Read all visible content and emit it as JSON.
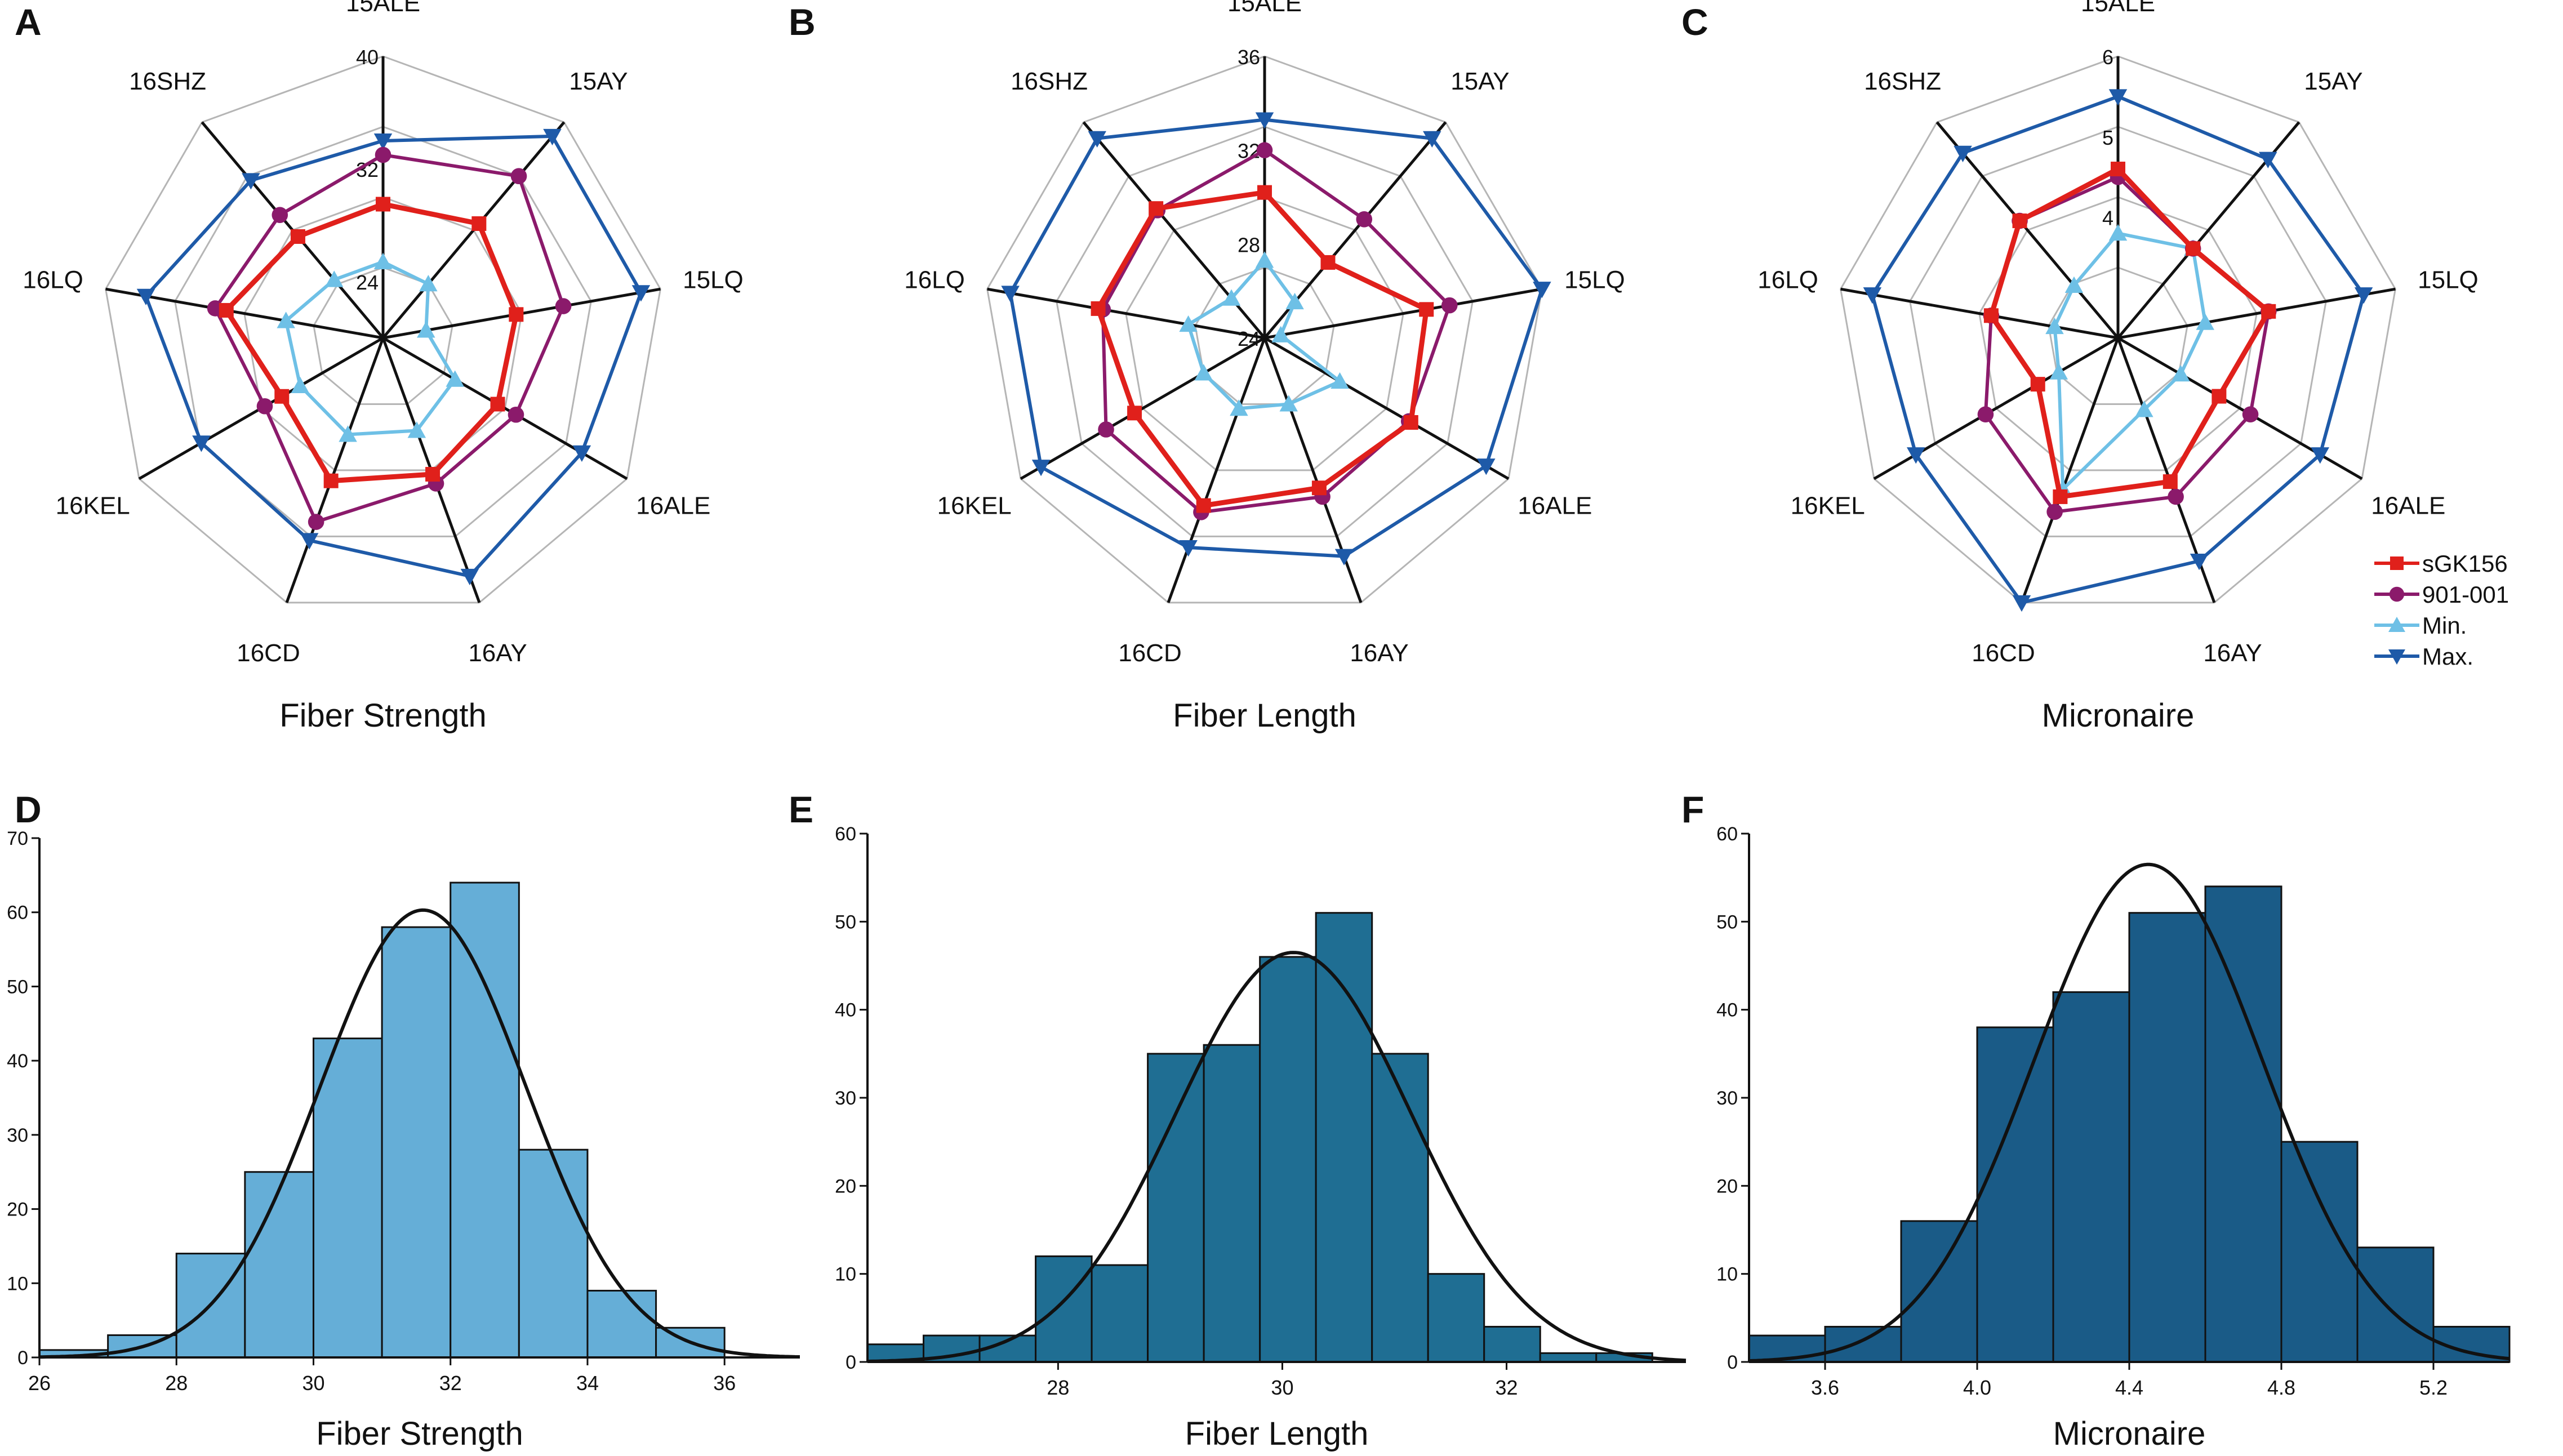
{
  "colors": {
    "sGK156": "#e0201b",
    "901-001": "#8b1a6b",
    "Min.": "#6ec0e6",
    "Max.": "#1e5aa8",
    "hist_D": "#65aed7",
    "hist_E": "#1f6e93",
    "hist_F": "#1a5b87",
    "curve": "#111111",
    "axis": "#111111",
    "grid": "#b5b5b5"
  },
  "legend": {
    "entries": [
      {
        "name": "sGK156",
        "marker": "square-icon"
      },
      {
        "name": "901-001",
        "marker": "circle-icon"
      },
      {
        "name": "Min.",
        "marker": "triangle-up-icon"
      },
      {
        "name": "Max.",
        "marker": "triangle-down-icon"
      }
    ]
  },
  "chart_data": [
    {
      "type": "radar",
      "panel": "A",
      "title": "Fiber Strength",
      "axes": [
        "15ALE",
        "15AY",
        "15LQ",
        "16ALE",
        "16AY",
        "16CD",
        "16KEL",
        "16LQ",
        "16SHZ"
      ],
      "rmin": 20,
      "rmax": 40,
      "tick_values": [
        24,
        32,
        40
      ],
      "tick_labels": [
        "24",
        "32",
        "40"
      ],
      "series": [
        {
          "name": "sGK156",
          "values": [
            29.5,
            30.6,
            29.6,
            29.4,
            30.3,
            30.8,
            28.3,
            31.3,
            29.4
          ]
        },
        {
          "name": "901-001",
          "values": [
            33.0,
            35.0,
            33.0,
            30.9,
            31.0,
            33.9,
            29.7,
            32.1,
            31.4
          ]
        },
        {
          "name": "Min.",
          "values": [
            25.4,
            25.0,
            23.1,
            25.9,
            27.0,
            27.3,
            26.8,
            27.0,
            25.4
          ]
        },
        {
          "name": "Max.",
          "values": [
            34.0,
            38.7,
            38.6,
            36.3,
            38.0,
            35.3,
            34.9,
            37.1,
            34.6
          ]
        }
      ]
    },
    {
      "type": "radar",
      "panel": "B",
      "title": "Fiber Length",
      "axes": [
        "15ALE",
        "15AY",
        "15LQ",
        "16ALE",
        "16AY",
        "16CD",
        "16KEL",
        "16LQ",
        "16SHZ"
      ],
      "rmin": 24,
      "rmax": 36,
      "tick_values": [
        24,
        28,
        32,
        36
      ],
      "tick_labels": [
        "24",
        "28",
        "32",
        "36"
      ],
      "series": [
        {
          "name": "sGK156",
          "values": [
            30.2,
            28.2,
            31.0,
            31.2,
            30.8,
            31.6,
            30.4,
            31.2,
            31.2
          ]
        },
        {
          "name": "901-001",
          "values": [
            32.0,
            30.6,
            32.0,
            31.1,
            31.2,
            31.9,
            31.8,
            31.0,
            31.1
          ]
        },
        {
          "name": "Min.",
          "values": [
            27.3,
            26.0,
            24.7,
            27.7,
            27.0,
            27.2,
            27.0,
            27.3,
            26.2
          ]
        },
        {
          "name": "Max.",
          "values": [
            33.3,
            35.1,
            36.0,
            34.9,
            33.9,
            33.5,
            35.0,
            35.0,
            35.1
          ]
        }
      ]
    },
    {
      "type": "radar",
      "panel": "C",
      "title": "Micronaire",
      "axes": [
        "15ALE",
        "15AY",
        "15LQ",
        "16ALE",
        "16AY",
        "16CD",
        "16KEL",
        "16LQ",
        "16SHZ"
      ],
      "rmin": 2.5,
      "rmax": 6,
      "tick_values": [
        4,
        5,
        6
      ],
      "tick_labels": [
        "4",
        "5",
        "6"
      ],
      "series": [
        {
          "name": "sGK156",
          "values": [
            4.6,
            3.95,
            4.4,
            3.95,
            4.4,
            4.6,
            3.65,
            4.1,
            4.4
          ]
        },
        {
          "name": "901-001",
          "values": [
            4.5,
            3.95,
            4.4,
            4.4,
            4.6,
            4.8,
            4.4,
            4.1,
            4.4
          ]
        },
        {
          "name": "Min.",
          "values": [
            3.8,
            3.95,
            3.6,
            3.4,
            3.45,
            4.5,
            3.35,
            3.3,
            3.35
          ]
        },
        {
          "name": "Max.",
          "values": [
            5.5,
            5.4,
            5.6,
            5.4,
            5.45,
            6.0,
            5.4,
            5.6,
            5.5
          ]
        }
      ]
    },
    {
      "type": "histogram",
      "panel": "D",
      "title": "Fiber Strength",
      "xlabel": "Fiber Strength",
      "ylabel": "",
      "xlim": [
        26,
        37.1
      ],
      "ylim": [
        0,
        70
      ],
      "xticks": [
        26,
        28,
        30,
        32,
        34,
        36
      ],
      "yticks": [
        0,
        10,
        20,
        30,
        40,
        50,
        60,
        70
      ],
      "bins": [
        {
          "start": 26,
          "end": 27,
          "count": 1
        },
        {
          "start": 27,
          "end": 28,
          "count": 3
        },
        {
          "start": 28,
          "end": 29,
          "count": 14
        },
        {
          "start": 29,
          "end": 30,
          "count": 25
        },
        {
          "start": 30,
          "end": 31,
          "count": 43
        },
        {
          "start": 31,
          "end": 32,
          "count": 58
        },
        {
          "start": 32,
          "end": 33,
          "count": 64
        },
        {
          "start": 33,
          "end": 34,
          "count": 28
        },
        {
          "start": 34,
          "end": 35,
          "count": 9
        },
        {
          "start": 35,
          "end": 36,
          "count": 4
        }
      ],
      "normal_fit": {
        "mean": 31.6,
        "sd": 1.5,
        "peak": 60.3
      }
    },
    {
      "type": "histogram",
      "panel": "E",
      "title": "Fiber Length",
      "xlabel": "Fiber Length",
      "ylabel": "",
      "xlim": [
        26.3,
        33.6
      ],
      "ylim": [
        0,
        60
      ],
      "xticks": [
        28,
        30,
        32
      ],
      "yticks": [
        0,
        10,
        20,
        30,
        40,
        50,
        60
      ],
      "bins": [
        {
          "start": 26.3,
          "end": 26.8,
          "count": 2
        },
        {
          "start": 26.8,
          "end": 27.3,
          "count": 3
        },
        {
          "start": 27.3,
          "end": 27.8,
          "count": 3
        },
        {
          "start": 27.8,
          "end": 28.3,
          "count": 12
        },
        {
          "start": 28.3,
          "end": 28.8,
          "count": 11
        },
        {
          "start": 28.8,
          "end": 29.3,
          "count": 35
        },
        {
          "start": 29.3,
          "end": 29.8,
          "count": 36
        },
        {
          "start": 29.8,
          "end": 30.3,
          "count": 46
        },
        {
          "start": 30.3,
          "end": 30.8,
          "count": 51
        },
        {
          "start": 30.8,
          "end": 31.3,
          "count": 35
        },
        {
          "start": 31.3,
          "end": 31.8,
          "count": 10
        },
        {
          "start": 31.8,
          "end": 32.3,
          "count": 4
        },
        {
          "start": 32.3,
          "end": 32.8,
          "count": 1
        },
        {
          "start": 32.8,
          "end": 33.3,
          "count": 1
        }
      ],
      "normal_fit": {
        "mean": 30.1,
        "sd": 1.05,
        "peak": 46.5
      }
    },
    {
      "type": "histogram",
      "panel": "F",
      "title": "Micronaire",
      "xlabel": "Micronaire",
      "ylabel": "",
      "xlim": [
        3.4,
        5.4
      ],
      "ylim": [
        0,
        60
      ],
      "xticks": [
        3.6,
        4.0,
        4.4,
        4.8,
        5.2
      ],
      "xtick_labels": [
        "3.6",
        "4.0",
        "4.4",
        "4.8",
        "5.2"
      ],
      "yticks": [
        0,
        10,
        20,
        30,
        40,
        50,
        60
      ],
      "bins": [
        {
          "start": 3.4,
          "end": 3.6,
          "count": 3
        },
        {
          "start": 3.6,
          "end": 3.8,
          "count": 4
        },
        {
          "start": 3.8,
          "end": 4.0,
          "count": 16
        },
        {
          "start": 4.0,
          "end": 4.2,
          "count": 38
        },
        {
          "start": 4.2,
          "end": 4.4,
          "count": 42
        },
        {
          "start": 4.4,
          "end": 4.6,
          "count": 51
        },
        {
          "start": 4.6,
          "end": 4.8,
          "count": 54
        },
        {
          "start": 4.8,
          "end": 5.0,
          "count": 25
        },
        {
          "start": 5.0,
          "end": 5.2,
          "count": 13
        },
        {
          "start": 5.2,
          "end": 5.4,
          "count": 4
        }
      ],
      "normal_fit": {
        "mean": 4.45,
        "sd": 0.3,
        "peak": 56.5
      }
    }
  ]
}
